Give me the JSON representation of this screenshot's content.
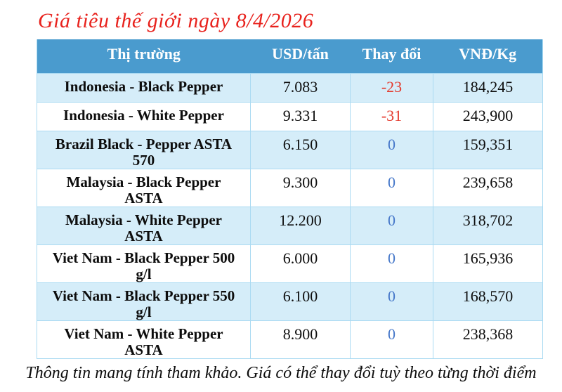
{
  "title": "Giá tiêu thế giới ngày 8/4/2026",
  "table": {
    "headers": {
      "market": "Thị trường",
      "usd": "USD/tấn",
      "change": "Thay đổi",
      "vnd": "VNĐ/Kg"
    },
    "rows": [
      {
        "market": "Indonesia - Black Pepper",
        "usd_per_ton": "7.083",
        "change": "-23",
        "vnd_per_kg": "184,245"
      },
      {
        "market": "Indonesia - White Pepper",
        "usd_per_ton": "9.331",
        "change": "-31",
        "vnd_per_kg": "243,900"
      },
      {
        "market": "Brazil Black - Pepper ASTA 570",
        "usd_per_ton": "6.150",
        "change": "0",
        "vnd_per_kg": "159,351"
      },
      {
        "market": "Malaysia - Black Pepper ASTA",
        "usd_per_ton": "9.300",
        "change": "0",
        "vnd_per_kg": "239,658"
      },
      {
        "market": "Malaysia - White Pepper ASTA",
        "usd_per_ton": "12.200",
        "change": "0",
        "vnd_per_kg": "318,702"
      },
      {
        "market": "Viet Nam - Black Pepper 500 g/l",
        "usd_per_ton": "6.000",
        "change": "0",
        "vnd_per_kg": "165,936"
      },
      {
        "market": "Viet Nam - Black Pepper 550 g/l",
        "usd_per_ton": "6.100",
        "change": "0",
        "vnd_per_kg": "168,570"
      },
      {
        "market": "Viet Nam - White Pepper ASTA",
        "usd_per_ton": "8.900",
        "change": "0",
        "vnd_per_kg": "238,368"
      }
    ]
  },
  "footer": {
    "note": "Thông tin mang tính tham khảo. Giá có thể thay đổi tuỳ theo từng thời điểm"
  },
  "colors": {
    "header_bg": "#4a9bce",
    "header_text": "#ffffff",
    "row_alt_bg": "#d5edf9",
    "row_bg": "#ffffff",
    "border_blue": "#aadaf2",
    "title_red": "#e8221d",
    "change_negative": "#e43a2d",
    "change_zero": "#4577c9",
    "text": "#0d0d0d"
  }
}
